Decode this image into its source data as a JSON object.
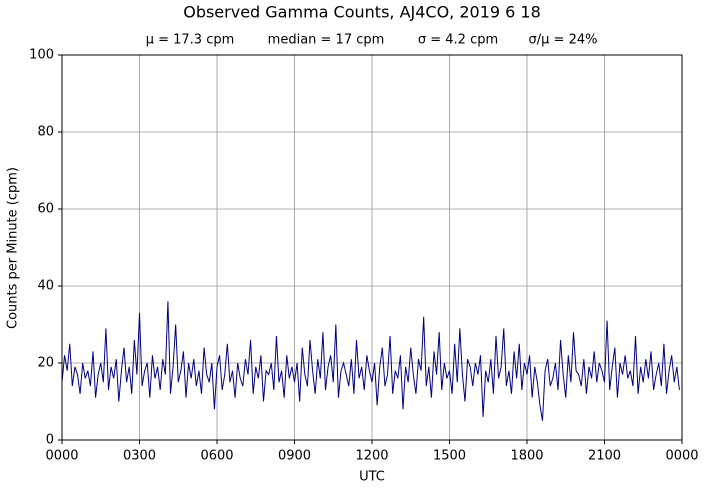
{
  "chart_data": {
    "type": "line",
    "title": "Observed Gamma Counts, AJ4CO, 2019 6 18",
    "subtitle": [
      "μ = 17.3 cpm",
      "median = 17 cpm",
      "σ = 4.2 cpm",
      "σ/μ = 24%"
    ],
    "xlabel": "UTC",
    "ylabel": "Counts per Minute (cpm)",
    "color": "#000080",
    "grid": true,
    "xlim": [
      0,
      24
    ],
    "ylim": [
      0,
      100
    ],
    "xticks": [
      {
        "value": 0,
        "label": "0000"
      },
      {
        "value": 3,
        "label": "0300"
      },
      {
        "value": 6,
        "label": "0600"
      },
      {
        "value": 9,
        "label": "0900"
      },
      {
        "value": 12,
        "label": "1200"
      },
      {
        "value": 15,
        "label": "1500"
      },
      {
        "value": 18,
        "label": "1800"
      },
      {
        "value": 21,
        "label": "2100"
      },
      {
        "value": 24,
        "label": "0000"
      }
    ],
    "yticks": [
      0,
      20,
      40,
      60,
      80,
      100
    ],
    "x": [
      0,
      0.1,
      0.2,
      0.3,
      0.4,
      0.5,
      0.6,
      0.7,
      0.8,
      0.9,
      1,
      1.1,
      1.2,
      1.3,
      1.4,
      1.5,
      1.6,
      1.7,
      1.8,
      1.9,
      2,
      2.1,
      2.2,
      2.3,
      2.4,
      2.5,
      2.6,
      2.7,
      2.8,
      2.9,
      3,
      3.1,
      3.2,
      3.3,
      3.4,
      3.5,
      3.6,
      3.7,
      3.8,
      3.9,
      4,
      4.1,
      4.2,
      4.3,
      4.4,
      4.5,
      4.6,
      4.7,
      4.8,
      4.9,
      5,
      5.1,
      5.2,
      5.3,
      5.4,
      5.5,
      5.6,
      5.7,
      5.8,
      5.9,
      6,
      6.1,
      6.2,
      6.3,
      6.4,
      6.5,
      6.6,
      6.7,
      6.8,
      6.9,
      7,
      7.1,
      7.2,
      7.3,
      7.4,
      7.5,
      7.6,
      7.7,
      7.8,
      7.9,
      8,
      8.1,
      8.2,
      8.3,
      8.4,
      8.5,
      8.6,
      8.7,
      8.8,
      8.9,
      9,
      9.1,
      9.2,
      9.3,
      9.4,
      9.5,
      9.6,
      9.7,
      9.8,
      9.9,
      10,
      10.1,
      10.2,
      10.3,
      10.4,
      10.5,
      10.6,
      10.7,
      10.8,
      10.9,
      11,
      11.1,
      11.2,
      11.3,
      11.4,
      11.5,
      11.6,
      11.7,
      11.8,
      11.9,
      12,
      12.1,
      12.2,
      12.3,
      12.4,
      12.5,
      12.6,
      12.7,
      12.8,
      12.9,
      13,
      13.1,
      13.2,
      13.3,
      13.4,
      13.5,
      13.6,
      13.7,
      13.8,
      13.9,
      14,
      14.1,
      14.2,
      14.3,
      14.4,
      14.5,
      14.6,
      14.7,
      14.8,
      14.9,
      15,
      15.1,
      15.2,
      15.3,
      15.4,
      15.5,
      15.6,
      15.7,
      15.8,
      15.9,
      16,
      16.1,
      16.2,
      16.3,
      16.4,
      16.5,
      16.6,
      16.7,
      16.8,
      16.9,
      17,
      17.1,
      17.2,
      17.3,
      17.4,
      17.5,
      17.6,
      17.7,
      17.8,
      17.9,
      18,
      18.1,
      18.2,
      18.3,
      18.4,
      18.5,
      18.6,
      18.7,
      18.8,
      18.9,
      19,
      19.1,
      19.2,
      19.3,
      19.4,
      19.5,
      19.6,
      19.7,
      19.8,
      19.9,
      20,
      20.1,
      20.2,
      20.3,
      20.4,
      20.5,
      20.6,
      20.7,
      20.8,
      20.9,
      21,
      21.1,
      21.2,
      21.3,
      21.4,
      21.5,
      21.6,
      21.7,
      21.8,
      21.9,
      22,
      22.1,
      22.2,
      22.3,
      22.4,
      22.5,
      22.6,
      22.7,
      22.8,
      22.9,
      23,
      23.1,
      23.2,
      23.3,
      23.4,
      23.5,
      23.6,
      23.7,
      23.8,
      23.9
    ],
    "values": [
      15,
      22,
      18,
      25,
      14,
      19,
      17,
      12,
      20,
      16,
      18,
      14,
      23,
      11,
      17,
      20,
      15,
      29,
      13,
      19,
      16,
      21,
      10,
      18,
      24,
      15,
      19,
      12,
      26,
      17,
      33,
      14,
      18,
      20,
      11,
      22,
      16,
      19,
      13,
      21,
      17,
      36,
      12,
      19,
      30,
      15,
      18,
      23,
      11,
      20,
      16,
      21,
      14,
      18,
      12,
      24,
      17,
      15,
      20,
      8,
      19,
      22,
      13,
      17,
      25,
      15,
      18,
      11,
      20,
      16,
      14,
      21,
      17,
      26,
      12,
      19,
      16,
      22,
      10,
      18,
      17,
      20,
      13,
      27,
      15,
      18,
      11,
      22,
      16,
      19,
      15,
      20,
      10,
      24,
      17,
      14,
      26,
      18,
      12,
      21,
      16,
      28,
      13,
      19,
      22,
      15,
      30,
      11,
      18,
      20,
      17,
      14,
      21,
      12,
      26,
      16,
      19,
      13,
      22,
      18,
      15,
      20,
      9,
      19,
      24,
      14,
      17,
      27,
      12,
      18,
      16,
      22,
      8,
      19,
      15,
      24,
      17,
      12,
      21,
      18,
      32,
      14,
      19,
      11,
      23,
      17,
      28,
      13,
      20,
      16,
      18,
      12,
      25,
      15,
      29,
      17,
      10,
      21,
      19,
      14,
      20,
      17,
      22,
      6,
      18,
      15,
      21,
      12,
      27,
      16,
      19,
      29,
      14,
      18,
      12,
      23,
      16,
      25,
      13,
      20,
      17,
      22,
      11,
      19,
      15,
      9,
      5,
      18,
      21,
      14,
      16,
      20,
      13,
      26,
      17,
      11,
      22,
      15,
      28,
      18,
      17,
      14,
      21,
      12,
      19,
      16,
      23,
      15,
      20,
      18,
      15,
      31,
      13,
      19,
      24,
      11,
      20,
      17,
      22,
      16,
      18,
      14,
      27,
      12,
      19,
      15,
      21,
      16,
      23,
      13,
      17,
      20,
      14,
      25,
      12,
      18,
      22,
      15,
      19,
      13
    ]
  }
}
